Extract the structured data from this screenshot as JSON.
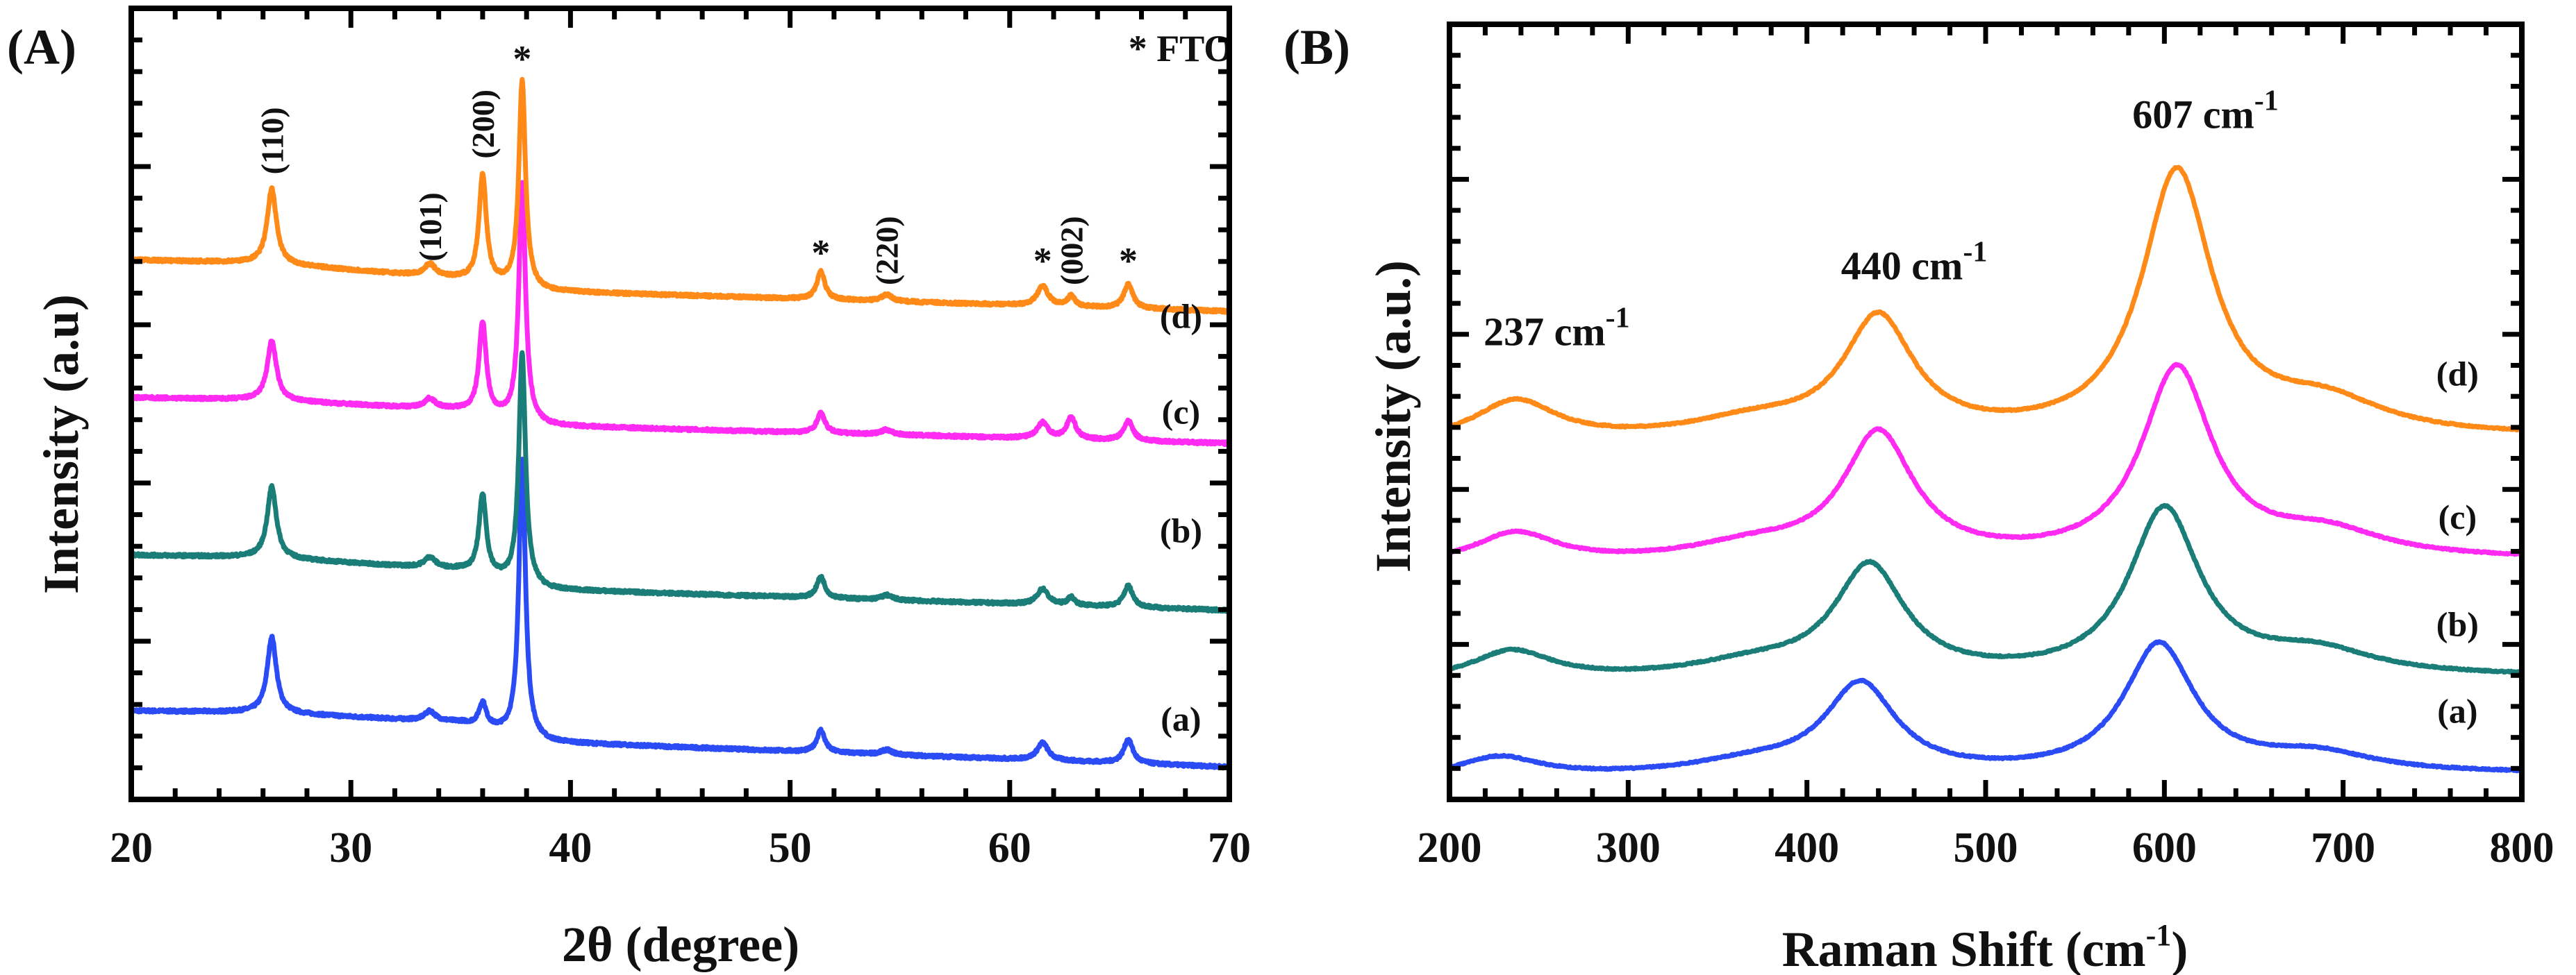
{
  "chart_data": [
    {
      "type": "line",
      "panel_label": "(A)",
      "xlabel": "2θ (degree)",
      "ylabel": "Intensity (a.u)",
      "xlim": [
        20,
        70
      ],
      "ylim": [
        0,
        100
      ],
      "xticks": [
        20,
        30,
        40,
        50,
        60,
        70
      ],
      "legend_note": "* FTO",
      "series": [
        {
          "name": "(a)",
          "color": "#2b4cf5",
          "label_pos": [
            67.8,
            8.7
          ],
          "baseline": [
            [
              20,
              11.2
            ],
            [
              26,
              11.0
            ],
            [
              35,
              9.7
            ],
            [
              39,
              7.2
            ],
            [
              70,
              4.1
            ]
          ],
          "peaks": [
            [
              26.4,
              9.6,
              0.25
            ],
            [
              33.6,
              1.2,
              0.3
            ],
            [
              36.0,
              3.0,
              0.2
            ],
            [
              37.8,
              35,
              0.18
            ],
            [
              51.4,
              2.8,
              0.22
            ],
            [
              54.4,
              0.6,
              0.3
            ],
            [
              61.5,
              2.2,
              0.3
            ],
            [
              65.4,
              3.0,
              0.25
            ]
          ]
        },
        {
          "name": "(b)",
          "color": "#1a7d78",
          "label_pos": [
            67.8,
            32.5
          ],
          "baseline": [
            [
              20,
              30.9
            ],
            [
              26,
              30.6
            ],
            [
              35,
              29.0
            ],
            [
              39,
              26.5
            ],
            [
              70,
              23.9
            ]
          ],
          "peaks": [
            [
              26.4,
              9.0,
              0.25
            ],
            [
              33.6,
              1.3,
              0.3
            ],
            [
              36.0,
              10.0,
              0.2
            ],
            [
              37.8,
              29,
              0.18
            ],
            [
              51.4,
              2.7,
              0.22
            ],
            [
              54.4,
              0.6,
              0.3
            ],
            [
              61.5,
              2.0,
              0.3
            ],
            [
              62.8,
              1.0,
              0.2
            ],
            [
              65.4,
              2.7,
              0.25
            ]
          ]
        },
        {
          "name": "(c)",
          "color": "#ff2bf2",
          "label_pos": [
            67.8,
            47.5
          ],
          "baseline": [
            [
              20,
              50.8
            ],
            [
              26,
              50.5
            ],
            [
              35,
              49.2
            ],
            [
              39,
              47.2
            ],
            [
              70,
              45.0
            ]
          ],
          "peaks": [
            [
              26.4,
              7.5,
              0.25
            ],
            [
              33.6,
              1.2,
              0.3
            ],
            [
              36.0,
              11.5,
              0.2
            ],
            [
              37.8,
              30,
              0.18
            ],
            [
              51.4,
              2.5,
              0.22
            ],
            [
              54.4,
              0.6,
              0.3
            ],
            [
              61.5,
              2.0,
              0.3
            ],
            [
              62.8,
              2.7,
              0.25
            ],
            [
              65.4,
              2.5,
              0.25
            ]
          ]
        },
        {
          "name": "(d)",
          "color": "#ff8a17",
          "label_pos": [
            67.8,
            59.6
          ],
          "baseline": [
            [
              20,
              68.2
            ],
            [
              26,
              67.8
            ],
            [
              35,
              65.8
            ],
            [
              39,
              64.2
            ],
            [
              70,
              61.7
            ]
          ],
          "peaks": [
            [
              26.4,
              9.5,
              0.25
            ],
            [
              33.6,
              1.5,
              0.3
            ],
            [
              36.0,
              13.5,
              0.2
            ],
            [
              37.8,
              26,
              0.18
            ],
            [
              51.4,
              3.5,
              0.22
            ],
            [
              54.4,
              0.8,
              0.3
            ],
            [
              61.5,
              2.5,
              0.3
            ],
            [
              62.8,
              1.3,
              0.2
            ],
            [
              65.4,
              3.0,
              0.25
            ]
          ]
        }
      ],
      "annotations": [
        {
          "text": "(110)",
          "x": 26.4,
          "y": 79,
          "rotated": true
        },
        {
          "text": "(101)",
          "x": 33.6,
          "y": 68,
          "rotated": true
        },
        {
          "text": "(200)",
          "x": 36.0,
          "y": 81,
          "rotated": true
        },
        {
          "text": "*",
          "x": 37.8,
          "y": 92,
          "rotated": false
        },
        {
          "text": "*",
          "x": 51.4,
          "y": 67.5,
          "rotated": false
        },
        {
          "text": "(220)",
          "x": 54.4,
          "y": 65,
          "rotated": true
        },
        {
          "text": "*",
          "x": 61.5,
          "y": 66.5,
          "rotated": false
        },
        {
          "text": "(002)",
          "x": 62.8,
          "y": 65,
          "rotated": true
        },
        {
          "text": "*",
          "x": 65.4,
          "y": 66.5,
          "rotated": false
        }
      ]
    },
    {
      "type": "line",
      "panel_label": "(B)",
      "xlabel": "Raman Shift (cm",
      "xlabel_sup": "-1",
      "xlabel_end": ")",
      "ylabel": "Intensity (a.u.)",
      "xlim": [
        200,
        800
      ],
      "ylim": [
        0,
        100
      ],
      "xticks": [
        200,
        300,
        400,
        500,
        600,
        700,
        800
      ],
      "series": [
        {
          "name": "(a)",
          "color": "#2b4cf5",
          "label_pos": [
            764,
            9.9
          ],
          "baseline": [
            [
              200,
              2.6
            ],
            [
              800,
              3.2
            ]
          ],
          "peaks": [
            [
              228,
              2.6,
              28
            ],
            [
              370,
              1.6,
              45
            ],
            [
              430,
              11.5,
              24
            ],
            [
              597,
              16.6,
              24
            ],
            [
              685,
              2.4,
              40
            ]
          ]
        },
        {
          "name": "(b)",
          "color": "#1a7d78",
          "label_pos": [
            764,
            21.1
          ],
          "baseline": [
            [
              200,
              15.0
            ],
            [
              800,
              15.7
            ]
          ],
          "peaks": [
            [
              235,
              3.8,
              28
            ],
            [
              370,
              1.8,
              45
            ],
            [
              435,
              14.2,
              24
            ],
            [
              600,
              21.5,
              24
            ],
            [
              685,
              3.0,
              40
            ]
          ]
        },
        {
          "name": "(c)",
          "color": "#ff2bf2",
          "label_pos": [
            764,
            34.9
          ],
          "baseline": [
            [
              200,
              30.0
            ],
            [
              800,
              30.8
            ]
          ],
          "peaks": [
            [
              237,
              4.0,
              28
            ],
            [
              370,
              2.0,
              45
            ],
            [
              440,
              16.2,
              24
            ],
            [
              607,
              24.5,
              24
            ],
            [
              690,
              3.2,
              40
            ]
          ]
        },
        {
          "name": "(d)",
          "color": "#ff8a17",
          "label_pos": [
            764,
            53.4
          ],
          "baseline": [
            [
              200,
              45.8
            ],
            [
              800,
              46.6
            ]
          ],
          "peaks": [
            [
              237,
              5.2,
              28
            ],
            [
              370,
              2.2,
              45
            ],
            [
              440,
              15.2,
              24
            ],
            [
              607,
              34.0,
              24
            ],
            [
              690,
              4.0,
              40
            ]
          ]
        }
      ],
      "annotations": [
        {
          "text": "237 cm",
          "sup": "-1",
          "x": 260,
          "y": 58.6
        },
        {
          "text": "440 cm",
          "sup": "-1",
          "x": 460,
          "y": 67.1
        },
        {
          "text": "607 cm",
          "sup": "-1",
          "x": 623,
          "y": 86.6
        }
      ]
    }
  ]
}
